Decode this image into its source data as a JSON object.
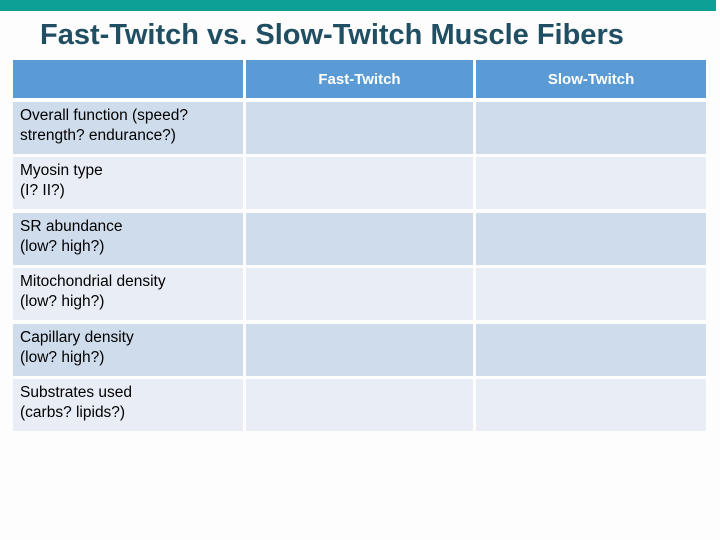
{
  "slide": {
    "title": "Fast-Twitch vs. Slow-Twitch Muscle Fibers"
  },
  "colors": {
    "accent_bar": "#0DA096",
    "title_text": "#204E62",
    "header_bg": "#5B9BD5",
    "header_text": "#FFFFFF",
    "band_odd": "#CFDCEC",
    "band_even": "#E9EDF6",
    "label_text": "#000000"
  },
  "table": {
    "columns": [
      "",
      "Fast-Twitch",
      "Slow-Twitch"
    ],
    "rows": [
      {
        "label_line1": "Overall function (speed?",
        "label_line2": "strength? endurance?)",
        "fast": "",
        "slow": ""
      },
      {
        "label_line1": "Myosin type",
        "label_line2": "(I? II?)",
        "fast": "",
        "slow": ""
      },
      {
        "label_line1": "SR abundance",
        "label_line2": "(low? high?)",
        "fast": "",
        "slow": ""
      },
      {
        "label_line1": "Mitochondrial density",
        "label_line2": "(low? high?)",
        "fast": "",
        "slow": ""
      },
      {
        "label_line1": "Capillary density",
        "label_line2": "(low? high?)",
        "fast": "",
        "slow": ""
      },
      {
        "label_line1": "Substrates used",
        "label_line2": "(carbs? lipids?)",
        "fast": "",
        "slow": ""
      }
    ]
  }
}
